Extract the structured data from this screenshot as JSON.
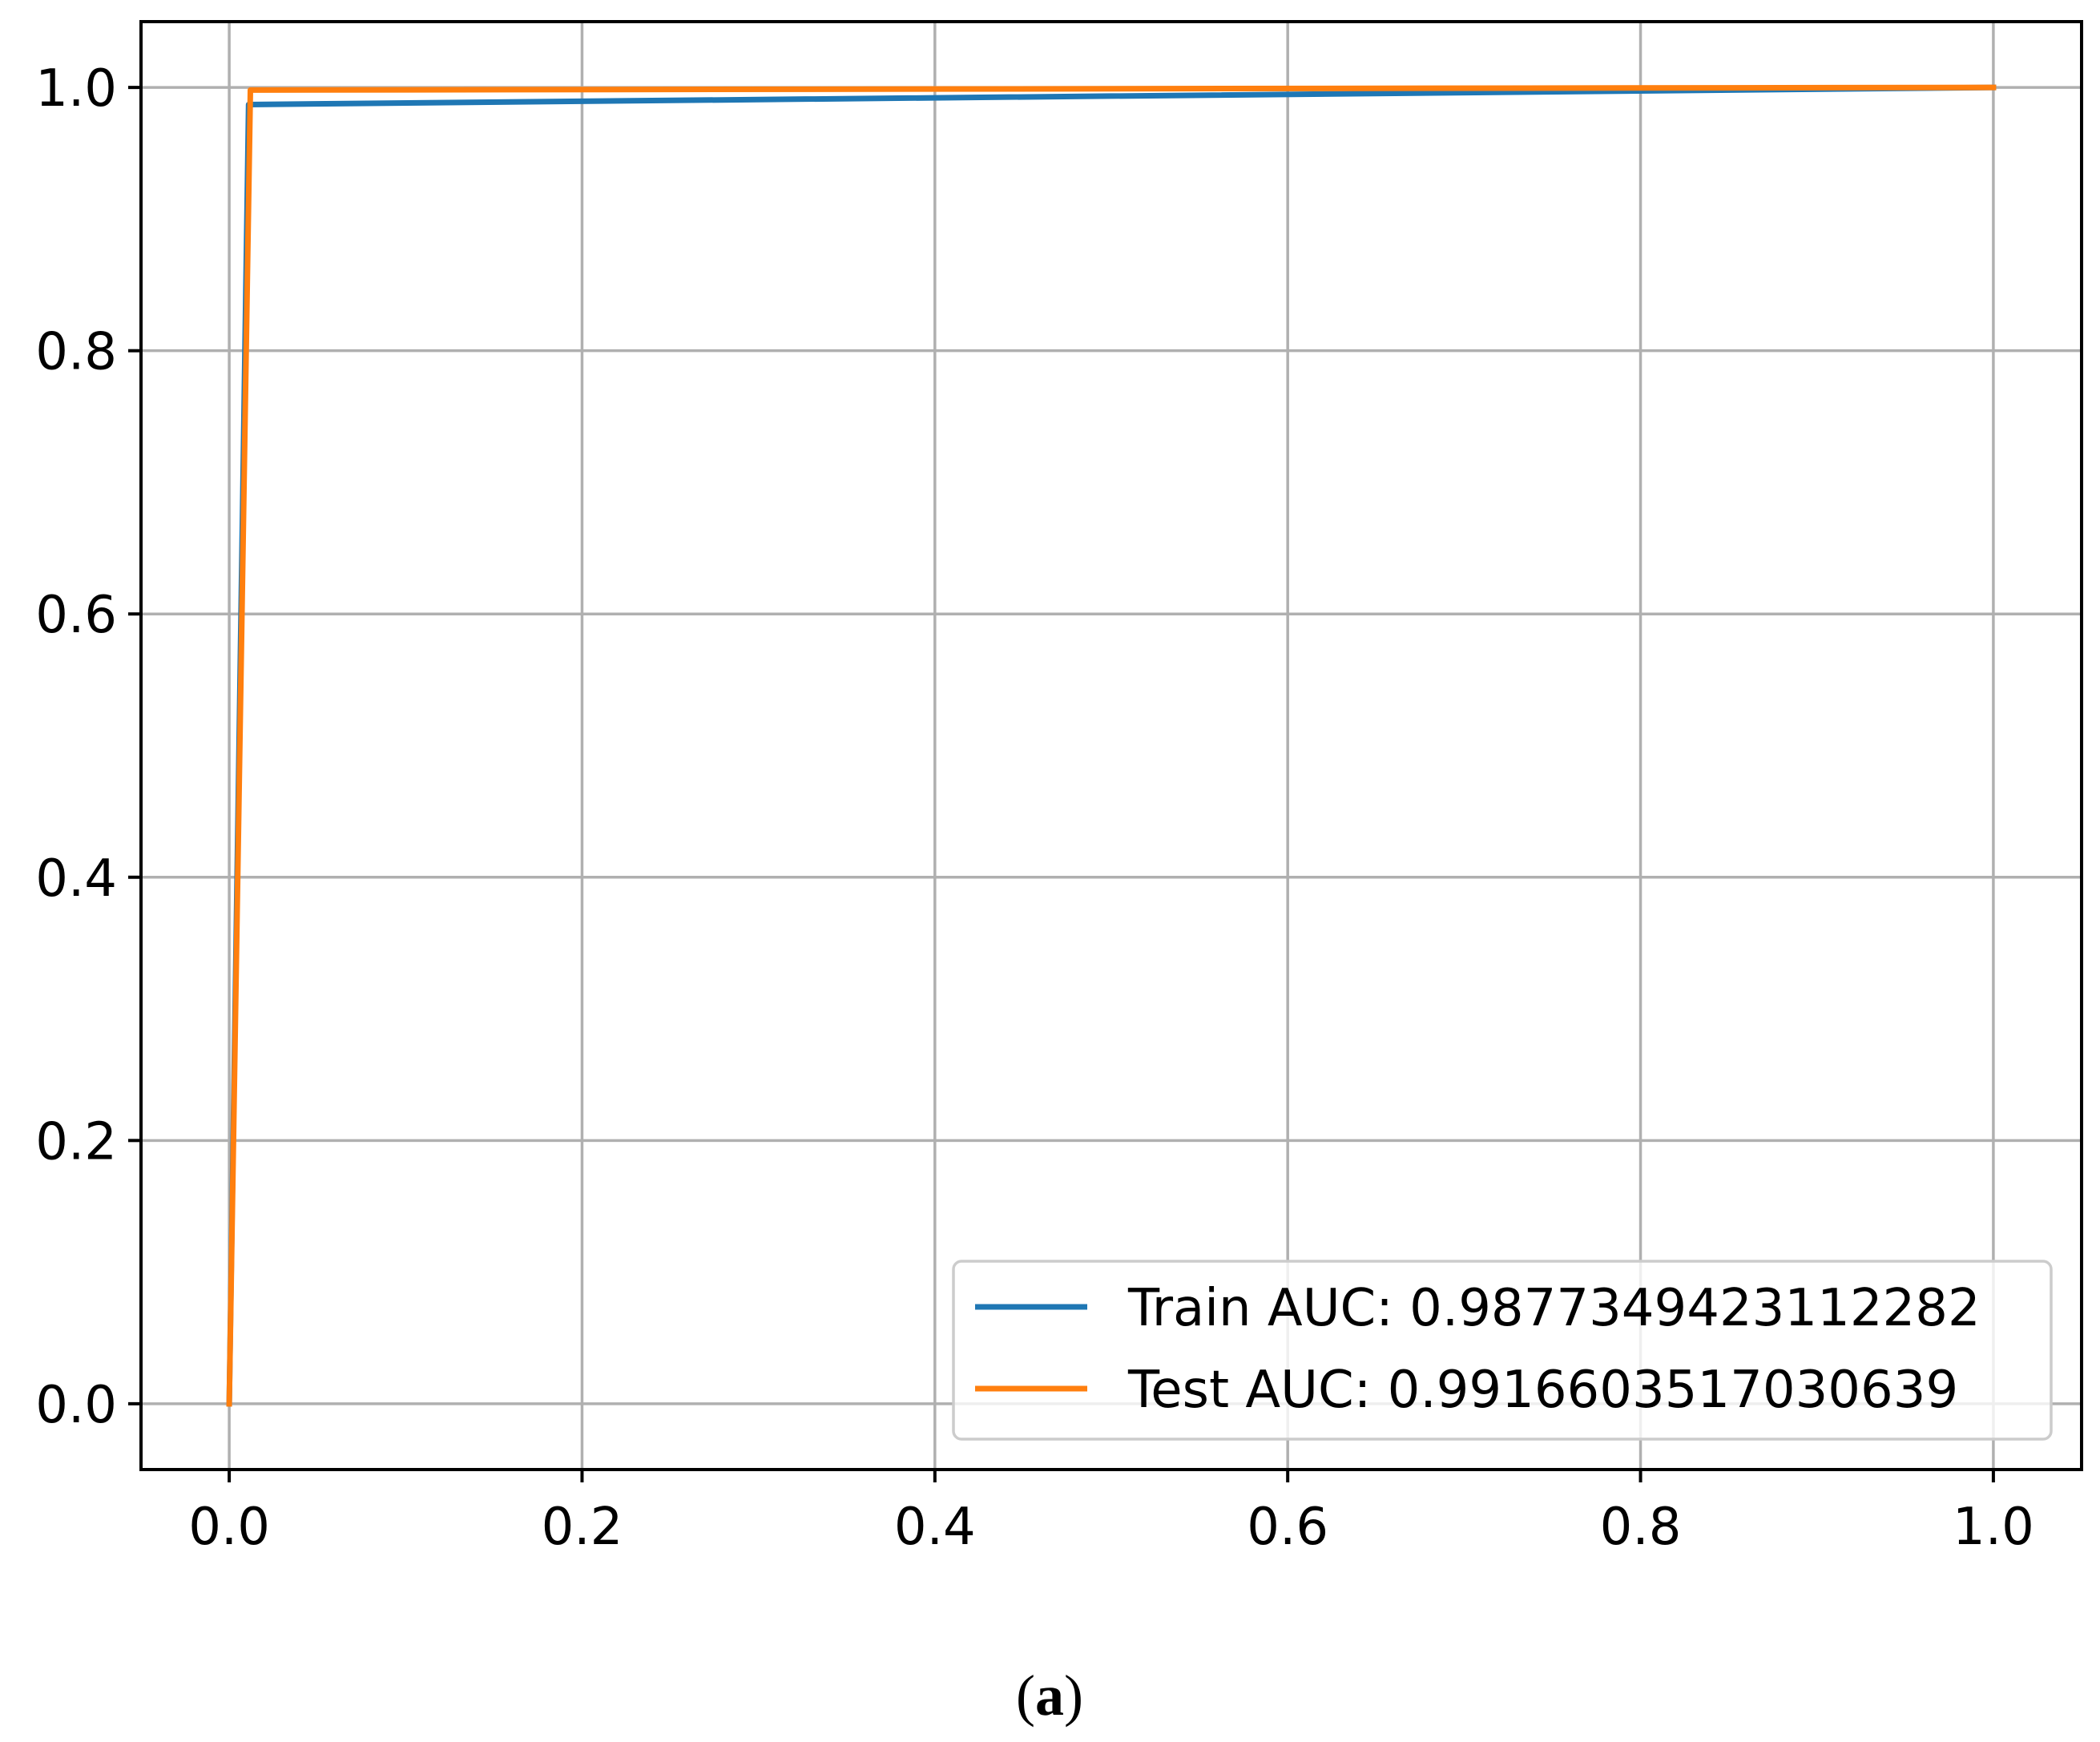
{
  "chart_data": {
    "type": "line",
    "title": "",
    "xlabel": "",
    "ylabel": "",
    "xlim": [
      -0.05,
      1.05
    ],
    "ylim": [
      -0.05,
      1.05
    ],
    "xticks": [
      0.0,
      0.2,
      0.4,
      0.6,
      0.8,
      1.0
    ],
    "yticks": [
      0.0,
      0.2,
      0.4,
      0.6,
      0.8,
      1.0
    ],
    "xtick_labels": [
      "0.0",
      "0.2",
      "0.4",
      "0.6",
      "0.8",
      "1.0"
    ],
    "ytick_labels": [
      "0.0",
      "0.2",
      "0.4",
      "0.6",
      "0.8",
      "1.0"
    ],
    "grid": true,
    "legend_position": "lower-right",
    "series": [
      {
        "name": "Train AUC: 0.9877349423112282",
        "color": "#1f77b4",
        "x": [
          0.0,
          0.011,
          1.0
        ],
        "y": [
          0.0,
          0.987,
          1.0
        ]
      },
      {
        "name": "Test AUC: 0.9916603517030639",
        "color": "#ff7f0e",
        "x": [
          0.0,
          0.012,
          1.0
        ],
        "y": [
          0.0,
          0.998,
          1.0
        ]
      }
    ]
  },
  "caption": {
    "open": "(",
    "letter": "a",
    "close": ")"
  }
}
